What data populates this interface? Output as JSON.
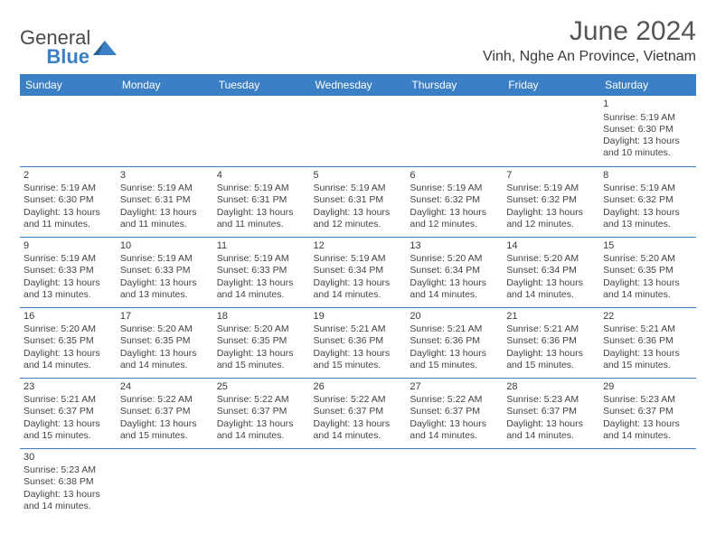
{
  "logo": {
    "word1": "General",
    "word2": "Blue"
  },
  "title": {
    "month": "June 2024",
    "location": "Vinh, Nghe An Province, Vietnam"
  },
  "columns": [
    "Sunday",
    "Monday",
    "Tuesday",
    "Wednesday",
    "Thursday",
    "Friday",
    "Saturday"
  ],
  "colors": {
    "header_bg": "#3b7fc4",
    "header_text": "#ffffff",
    "border": "#3b7fc4",
    "text": "#3a3a3a",
    "background": "#ffffff"
  },
  "weeks": [
    [
      null,
      null,
      null,
      null,
      null,
      null,
      {
        "d": "1",
        "sunrise": "Sunrise: 5:19 AM",
        "sunset": "Sunset: 6:30 PM",
        "daylight": "Daylight: 13 hours and 10 minutes."
      }
    ],
    [
      {
        "d": "2",
        "sunrise": "Sunrise: 5:19 AM",
        "sunset": "Sunset: 6:30 PM",
        "daylight": "Daylight: 13 hours and 11 minutes."
      },
      {
        "d": "3",
        "sunrise": "Sunrise: 5:19 AM",
        "sunset": "Sunset: 6:31 PM",
        "daylight": "Daylight: 13 hours and 11 minutes."
      },
      {
        "d": "4",
        "sunrise": "Sunrise: 5:19 AM",
        "sunset": "Sunset: 6:31 PM",
        "daylight": "Daylight: 13 hours and 11 minutes."
      },
      {
        "d": "5",
        "sunrise": "Sunrise: 5:19 AM",
        "sunset": "Sunset: 6:31 PM",
        "daylight": "Daylight: 13 hours and 12 minutes."
      },
      {
        "d": "6",
        "sunrise": "Sunrise: 5:19 AM",
        "sunset": "Sunset: 6:32 PM",
        "daylight": "Daylight: 13 hours and 12 minutes."
      },
      {
        "d": "7",
        "sunrise": "Sunrise: 5:19 AM",
        "sunset": "Sunset: 6:32 PM",
        "daylight": "Daylight: 13 hours and 12 minutes."
      },
      {
        "d": "8",
        "sunrise": "Sunrise: 5:19 AM",
        "sunset": "Sunset: 6:32 PM",
        "daylight": "Daylight: 13 hours and 13 minutes."
      }
    ],
    [
      {
        "d": "9",
        "sunrise": "Sunrise: 5:19 AM",
        "sunset": "Sunset: 6:33 PM",
        "daylight": "Daylight: 13 hours and 13 minutes."
      },
      {
        "d": "10",
        "sunrise": "Sunrise: 5:19 AM",
        "sunset": "Sunset: 6:33 PM",
        "daylight": "Daylight: 13 hours and 13 minutes."
      },
      {
        "d": "11",
        "sunrise": "Sunrise: 5:19 AM",
        "sunset": "Sunset: 6:33 PM",
        "daylight": "Daylight: 13 hours and 14 minutes."
      },
      {
        "d": "12",
        "sunrise": "Sunrise: 5:19 AM",
        "sunset": "Sunset: 6:34 PM",
        "daylight": "Daylight: 13 hours and 14 minutes."
      },
      {
        "d": "13",
        "sunrise": "Sunrise: 5:20 AM",
        "sunset": "Sunset: 6:34 PM",
        "daylight": "Daylight: 13 hours and 14 minutes."
      },
      {
        "d": "14",
        "sunrise": "Sunrise: 5:20 AM",
        "sunset": "Sunset: 6:34 PM",
        "daylight": "Daylight: 13 hours and 14 minutes."
      },
      {
        "d": "15",
        "sunrise": "Sunrise: 5:20 AM",
        "sunset": "Sunset: 6:35 PM",
        "daylight": "Daylight: 13 hours and 14 minutes."
      }
    ],
    [
      {
        "d": "16",
        "sunrise": "Sunrise: 5:20 AM",
        "sunset": "Sunset: 6:35 PM",
        "daylight": "Daylight: 13 hours and 14 minutes."
      },
      {
        "d": "17",
        "sunrise": "Sunrise: 5:20 AM",
        "sunset": "Sunset: 6:35 PM",
        "daylight": "Daylight: 13 hours and 14 minutes."
      },
      {
        "d": "18",
        "sunrise": "Sunrise: 5:20 AM",
        "sunset": "Sunset: 6:35 PM",
        "daylight": "Daylight: 13 hours and 15 minutes."
      },
      {
        "d": "19",
        "sunrise": "Sunrise: 5:21 AM",
        "sunset": "Sunset: 6:36 PM",
        "daylight": "Daylight: 13 hours and 15 minutes."
      },
      {
        "d": "20",
        "sunrise": "Sunrise: 5:21 AM",
        "sunset": "Sunset: 6:36 PM",
        "daylight": "Daylight: 13 hours and 15 minutes."
      },
      {
        "d": "21",
        "sunrise": "Sunrise: 5:21 AM",
        "sunset": "Sunset: 6:36 PM",
        "daylight": "Daylight: 13 hours and 15 minutes."
      },
      {
        "d": "22",
        "sunrise": "Sunrise: 5:21 AM",
        "sunset": "Sunset: 6:36 PM",
        "daylight": "Daylight: 13 hours and 15 minutes."
      }
    ],
    [
      {
        "d": "23",
        "sunrise": "Sunrise: 5:21 AM",
        "sunset": "Sunset: 6:37 PM",
        "daylight": "Daylight: 13 hours and 15 minutes."
      },
      {
        "d": "24",
        "sunrise": "Sunrise: 5:22 AM",
        "sunset": "Sunset: 6:37 PM",
        "daylight": "Daylight: 13 hours and 15 minutes."
      },
      {
        "d": "25",
        "sunrise": "Sunrise: 5:22 AM",
        "sunset": "Sunset: 6:37 PM",
        "daylight": "Daylight: 13 hours and 14 minutes."
      },
      {
        "d": "26",
        "sunrise": "Sunrise: 5:22 AM",
        "sunset": "Sunset: 6:37 PM",
        "daylight": "Daylight: 13 hours and 14 minutes."
      },
      {
        "d": "27",
        "sunrise": "Sunrise: 5:22 AM",
        "sunset": "Sunset: 6:37 PM",
        "daylight": "Daylight: 13 hours and 14 minutes."
      },
      {
        "d": "28",
        "sunrise": "Sunrise: 5:23 AM",
        "sunset": "Sunset: 6:37 PM",
        "daylight": "Daylight: 13 hours and 14 minutes."
      },
      {
        "d": "29",
        "sunrise": "Sunrise: 5:23 AM",
        "sunset": "Sunset: 6:37 PM",
        "daylight": "Daylight: 13 hours and 14 minutes."
      }
    ],
    [
      {
        "d": "30",
        "sunrise": "Sunrise: 5:23 AM",
        "sunset": "Sunset: 6:38 PM",
        "daylight": "Daylight: 13 hours and 14 minutes."
      },
      null,
      null,
      null,
      null,
      null,
      null
    ]
  ]
}
